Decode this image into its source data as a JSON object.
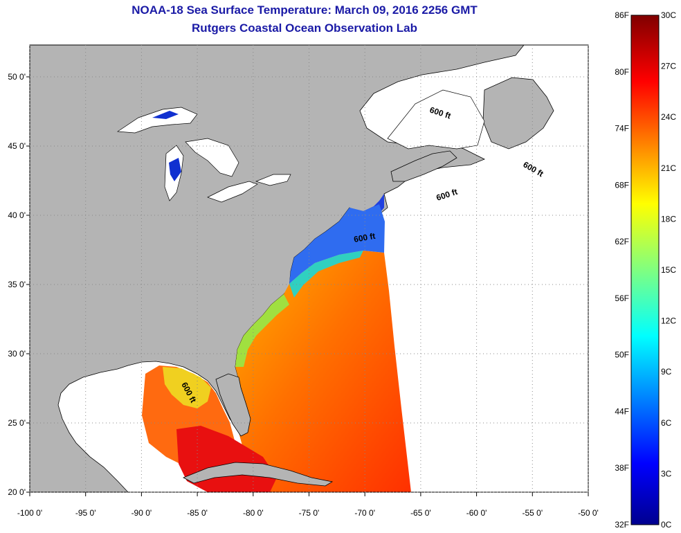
{
  "title": "NOAA-18 Sea Surface Temperature:  March 09, 2016 2256 GMT",
  "subtitle": "Rutgers Coastal Ocean Observation Lab",
  "map": {
    "lon_range": [
      -100,
      -50
    ],
    "lat_range": [
      20,
      52.3
    ],
    "x_ticks": [
      {
        "lon": -100,
        "label": "-100 0'"
      },
      {
        "lon": -95,
        "label": "-95 0'"
      },
      {
        "lon": -90,
        "label": "-90 0'"
      },
      {
        "lon": -85,
        "label": "-85 0'"
      },
      {
        "lon": -80,
        "label": "-80 0'"
      },
      {
        "lon": -75,
        "label": "-75 0'"
      },
      {
        "lon": -70,
        "label": "-70 0'"
      },
      {
        "lon": -65,
        "label": "-65 0'"
      },
      {
        "lon": -60,
        "label": "-60 0'"
      },
      {
        "lon": -55,
        "label": "-55 0'"
      },
      {
        "lon": -50,
        "label": "-50 0'"
      }
    ],
    "y_ticks": [
      {
        "lat": 50,
        "label": "50 0'"
      },
      {
        "lat": 45,
        "label": "45 0'"
      },
      {
        "lat": 40,
        "label": "40 0'"
      },
      {
        "lat": 35,
        "label": "35 0'"
      },
      {
        "lat": 30,
        "label": "30 0'"
      },
      {
        "lat": 25,
        "label": "25 0'"
      },
      {
        "lat": 20,
        "label": "20 0'"
      }
    ],
    "isobath_label": "600 ft",
    "grid": true,
    "colors": {
      "land": "#b4b4b4",
      "ocean_nodata": "#ffffff",
      "grid": "#888888",
      "coast": "#000000"
    }
  },
  "colorbar": {
    "f_labels": [
      "86F",
      "80F",
      "74F",
      "68F",
      "62F",
      "56F",
      "50F",
      "44F",
      "38F",
      "32F"
    ],
    "c_labels": [
      "30C",
      "27C",
      "24C",
      "21C",
      "18C",
      "15C",
      "12C",
      "9C",
      "6C",
      "3C",
      "0C"
    ],
    "range_c": [
      0,
      30
    ],
    "colormap": "jet"
  }
}
